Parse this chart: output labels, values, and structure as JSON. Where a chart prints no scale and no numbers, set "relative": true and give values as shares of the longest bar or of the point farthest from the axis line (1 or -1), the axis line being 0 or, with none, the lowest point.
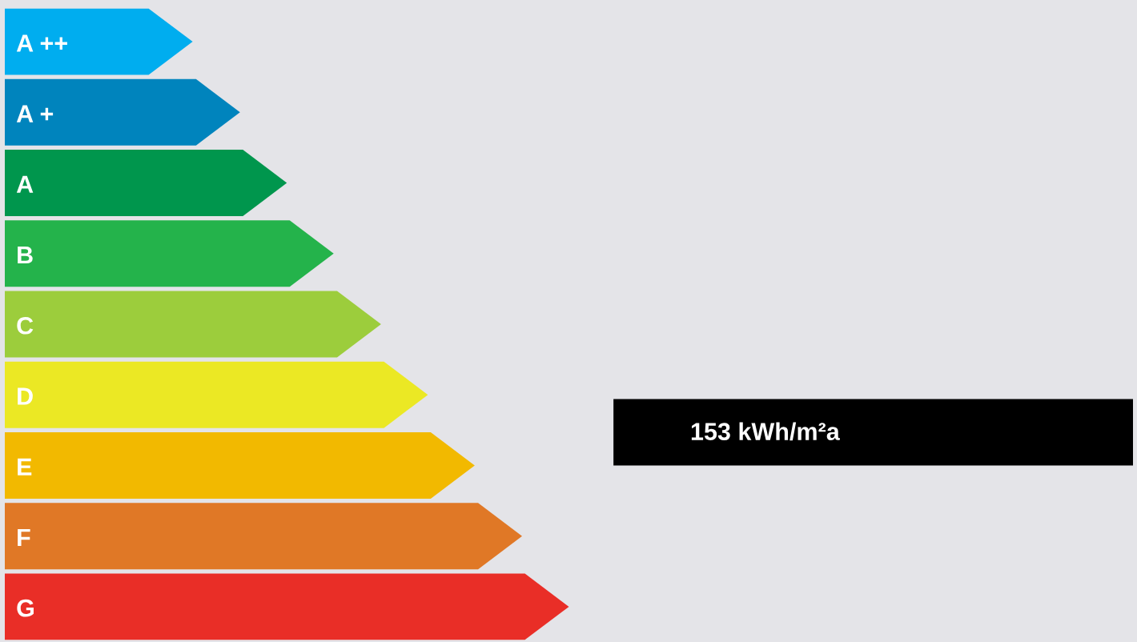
{
  "chart_data": {
    "type": "bar",
    "orientation": "horizontal",
    "relative": true,
    "categories": [
      "A ++",
      "A +",
      "A",
      "B",
      "C",
      "D",
      "E",
      "F",
      "G"
    ],
    "values": [
      0.333,
      0.417,
      0.5,
      0.583,
      0.667,
      0.75,
      0.833,
      0.917,
      1
    ],
    "colors": [
      "#00adef",
      "#0084bd",
      "#00964d",
      "#24b34b",
      "#9ccd3c",
      "#ebe824",
      "#f2b900",
      "#e07826",
      "#e92e27"
    ],
    "annotations": [
      "153 kWh/m²a"
    ]
  }
}
